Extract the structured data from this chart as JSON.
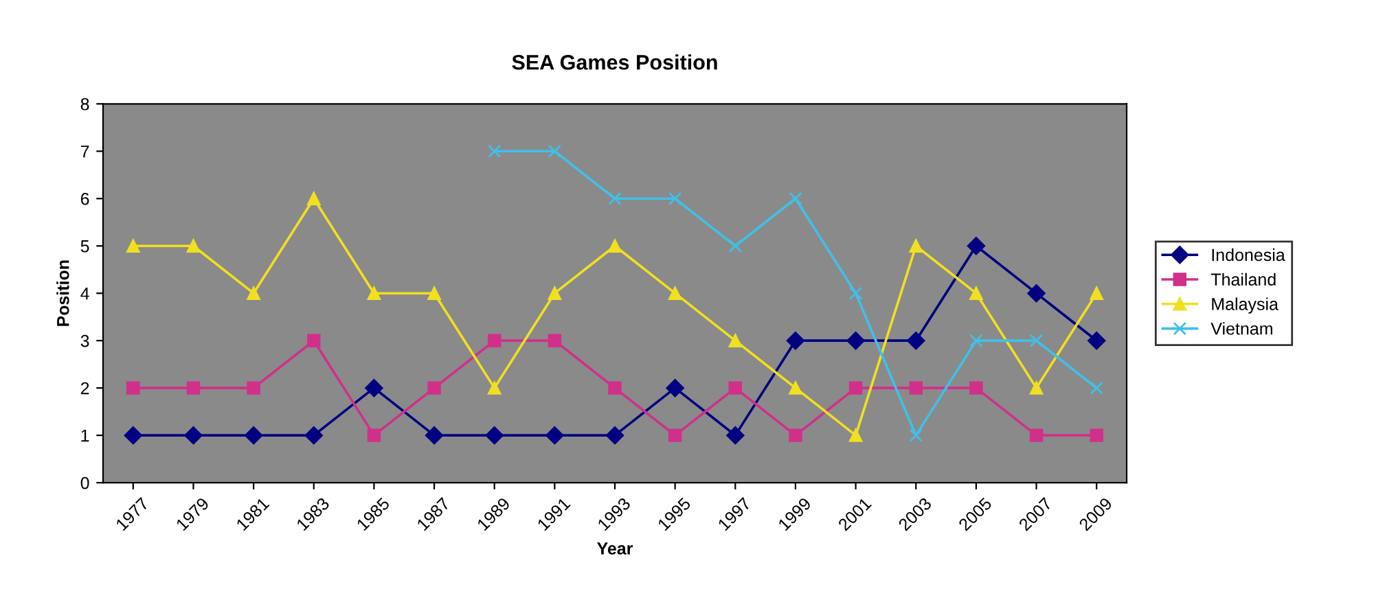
{
  "chart_data": {
    "type": "line",
    "title": "SEA Games Position",
    "xlabel": "Year",
    "ylabel": "Position",
    "categories": [
      "1977",
      "1979",
      "1981",
      "1983",
      "1985",
      "1987",
      "1989",
      "1991",
      "1993",
      "1995",
      "1997",
      "1999",
      "2001",
      "2003",
      "2005",
      "2007",
      "2009"
    ],
    "series": [
      {
        "name": "Indonesia",
        "color": "#000080",
        "marker": "diamond",
        "values": [
          1,
          1,
          1,
          1,
          2,
          1,
          1,
          1,
          1,
          2,
          1,
          3,
          3,
          3,
          5,
          4,
          3
        ]
      },
      {
        "name": "Thailand",
        "color": "#d0308a",
        "marker": "square",
        "values": [
          2,
          2,
          2,
          3,
          1,
          2,
          3,
          3,
          2,
          1,
          2,
          1,
          2,
          2,
          2,
          1,
          1
        ]
      },
      {
        "name": "Malaysia",
        "color": "#f0e020",
        "marker": "triangle",
        "values": [
          5,
          5,
          4,
          6,
          4,
          4,
          2,
          4,
          5,
          4,
          3,
          2,
          1,
          5,
          4,
          2,
          4
        ]
      },
      {
        "name": "Vietnam",
        "color": "#40c0e8",
        "marker": "cross",
        "values": [
          null,
          null,
          null,
          null,
          null,
          null,
          7,
          7,
          6,
          6,
          5,
          6,
          4,
          1,
          3,
          3,
          2
        ]
      }
    ],
    "ylim": [
      0,
      8
    ],
    "yticks": [
      0,
      1,
      2,
      3,
      4,
      5,
      6,
      7,
      8
    ],
    "grid": false,
    "legend": "right"
  }
}
